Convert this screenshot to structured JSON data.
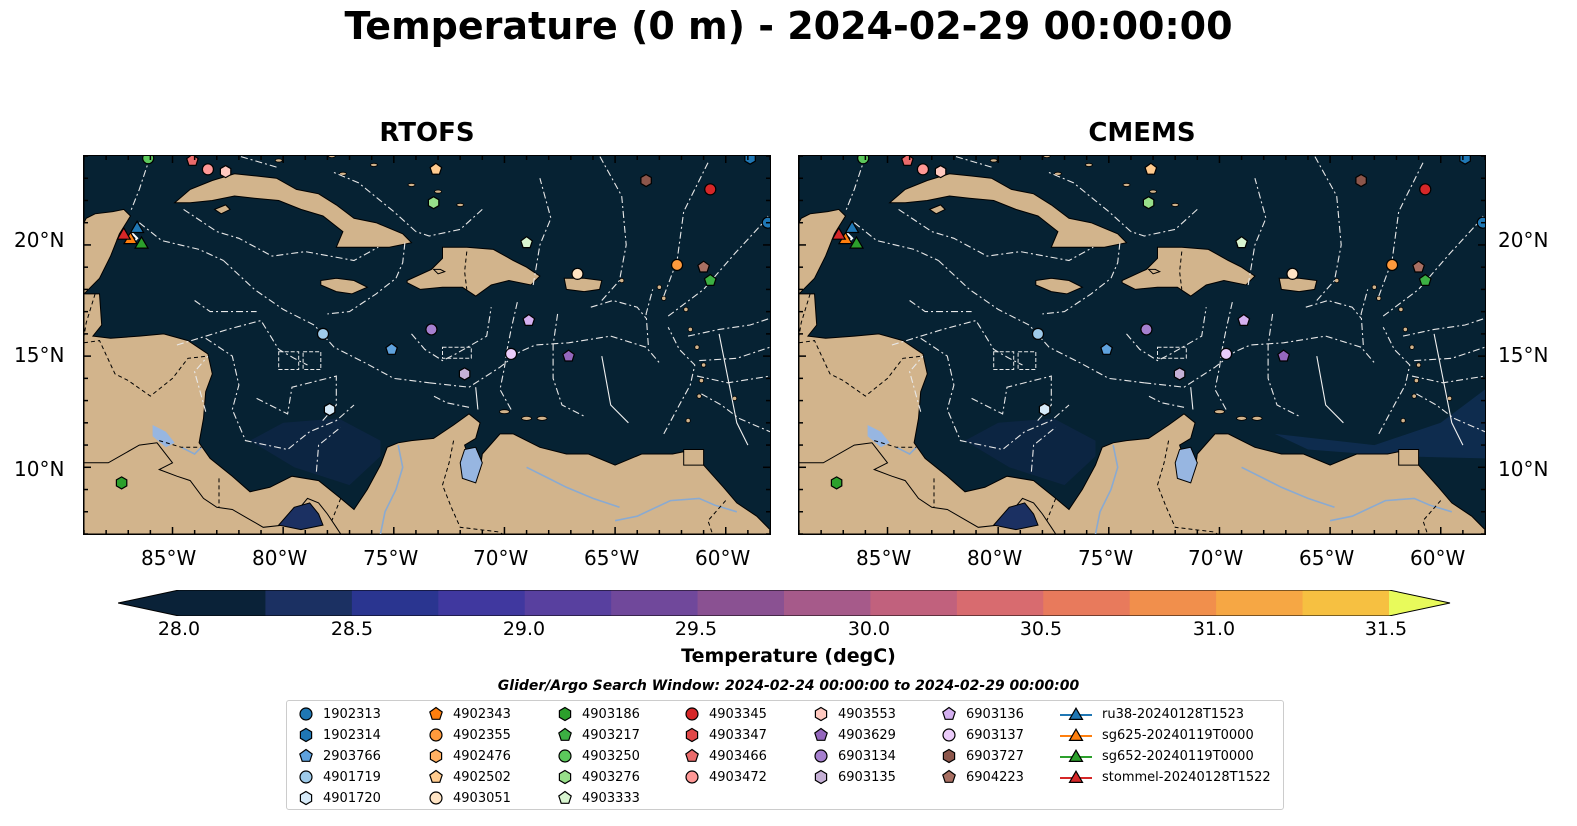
{
  "figure": {
    "title": "Temperature (0 m) - 2024-02-29 00:00:00",
    "panels": [
      "RTOFS",
      "CMEMS"
    ],
    "lat_ticks": [
      "20°N",
      "15°N",
      "10°N"
    ],
    "lon_ticks": [
      "85°W",
      "80°W",
      "75°W",
      "70°W",
      "65°W",
      "60°W"
    ]
  },
  "colorbar": {
    "label": "Temperature (degC)",
    "tick_labels": [
      "28.0",
      "28.5",
      "29.0",
      "29.5",
      "30.0",
      "30.5",
      "31.0",
      "31.5"
    ],
    "range": [
      28.0,
      31.5
    ],
    "step": 0.25,
    "colors": [
      "#0a2238",
      "#1b3062",
      "#2a3590",
      "#40389f",
      "#58409f",
      "#70489b",
      "#8a5192",
      "#a65a8a",
      "#c1617d",
      "#d86b6f",
      "#e87a5c",
      "#f18f4c",
      "#f6a744",
      "#f6c041",
      "#f1dc47",
      "#e8fa5b"
    ],
    "cmap": "thermal"
  },
  "legend": {
    "search_window": "Glider/Argo Search Window: 2024-02-24 00:00:00 to 2024-02-29 00:00:00",
    "columns": [
      [
        {
          "label": "1902313",
          "marker": "circle",
          "color": "#1f77b4"
        },
        {
          "label": "1902314",
          "marker": "hexagon",
          "color": "#1f77b4"
        },
        {
          "label": "2903766",
          "marker": "pentagon",
          "color": "#5fa2dd"
        },
        {
          "label": "4901719",
          "marker": "circle",
          "color": "#9ecae9"
        },
        {
          "label": "4901720",
          "marker": "hexagon",
          "color": "#d6eaf8"
        }
      ],
      [
        {
          "label": "4902343",
          "marker": "pentagon",
          "color": "#ff7f0e"
        },
        {
          "label": "4902355",
          "marker": "circle",
          "color": "#ff9a3c"
        },
        {
          "label": "4902476",
          "marker": "hexagon",
          "color": "#ffb062"
        },
        {
          "label": "4902502",
          "marker": "pentagon",
          "color": "#ffcb8f"
        },
        {
          "label": "4903051",
          "marker": "circle",
          "color": "#ffe4c4"
        }
      ],
      [
        {
          "label": "4903186",
          "marker": "hexagon",
          "color": "#2ca02c"
        },
        {
          "label": "4903217",
          "marker": "pentagon",
          "color": "#3cb043"
        },
        {
          "label": "4903250",
          "marker": "circle",
          "color": "#5cc85c"
        },
        {
          "label": "4903276",
          "marker": "hexagon",
          "color": "#98df8a"
        },
        {
          "label": "4903333",
          "marker": "pentagon",
          "color": "#d8f5d0"
        }
      ],
      [
        {
          "label": "4903345",
          "marker": "circle",
          "color": "#d62728"
        },
        {
          "label": "4903347",
          "marker": "hexagon",
          "color": "#e04848"
        },
        {
          "label": "4903466",
          "marker": "pentagon",
          "color": "#ea6b6b"
        },
        {
          "label": "4903472",
          "marker": "circle",
          "color": "#ff9896"
        }
      ],
      [
        {
          "label": "4903553",
          "marker": "hexagon",
          "color": "#ffc9c0"
        },
        {
          "label": "4903629",
          "marker": "pentagon",
          "color": "#9467bd"
        },
        {
          "label": "6903134",
          "marker": "circle",
          "color": "#a680cf"
        },
        {
          "label": "6903135",
          "marker": "hexagon",
          "color": "#c5b0d5"
        }
      ],
      [
        {
          "label": "6903136",
          "marker": "pentagon",
          "color": "#d4b0f0"
        },
        {
          "label": "6903137",
          "marker": "circle",
          "color": "#ebccfa"
        },
        {
          "label": "6903727",
          "marker": "hexagon",
          "color": "#8c564b"
        },
        {
          "label": "6904223",
          "marker": "pentagon",
          "color": "#a86f62"
        }
      ],
      [
        {
          "label": "ru38-20240128T1523",
          "marker": "triangle",
          "color": "#1f77b4"
        },
        {
          "label": "sg625-20240119T0000",
          "marker": "triangle",
          "color": "#ff7f0e"
        },
        {
          "label": "sg652-20240119T0000",
          "marker": "triangle",
          "color": "#2ca02c"
        },
        {
          "label": "stommel-20240128T1522",
          "marker": "triangle",
          "color": "#d62728"
        }
      ]
    ]
  },
  "map_data": {
    "extent_lon": [
      -89,
      -58
    ],
    "extent_lat": [
      7,
      24
    ],
    "ocean_color": "#062233",
    "land_color": "#d2b48c",
    "lake_color": "#97b6e1",
    "argo_floats": [
      {
        "label": "4903250",
        "lon": -86.1,
        "lat": 23.9,
        "marker": "circle",
        "color": "#5cc85c"
      },
      {
        "label": "4903466",
        "lon": -84.1,
        "lat": 23.8,
        "marker": "pentagon",
        "color": "#ea6b6b"
      },
      {
        "label": "4903472",
        "lon": -83.4,
        "lat": 23.4,
        "marker": "circle",
        "color": "#ff9896"
      },
      {
        "label": "4903553",
        "lon": -82.6,
        "lat": 23.3,
        "marker": "hexagon",
        "color": "#ffc9c0"
      },
      {
        "label": "4902502",
        "lon": -73.1,
        "lat": 23.4,
        "marker": "pentagon",
        "color": "#ffcb8f"
      },
      {
        "label": "4903276",
        "lon": -73.2,
        "lat": 21.9,
        "marker": "hexagon",
        "color": "#98df8a"
      },
      {
        "label": "6903727",
        "lon": -63.6,
        "lat": 22.9,
        "marker": "hexagon",
        "color": "#8c564b"
      },
      {
        "label": "4903345",
        "lon": -60.7,
        "lat": 22.5,
        "marker": "circle",
        "color": "#d62728"
      },
      {
        "label": "1902314",
        "lon": -58.9,
        "lat": 23.9,
        "marker": "hexagon",
        "color": "#1f77b4"
      },
      {
        "label": "1902313",
        "lon": -58.1,
        "lat": 21.0,
        "marker": "circle",
        "color": "#1f77b4"
      },
      {
        "label": "4903333",
        "lon": -69.0,
        "lat": 20.1,
        "marker": "pentagon",
        "color": "#d8f5d0"
      },
      {
        "label": "4903051",
        "lon": -66.7,
        "lat": 18.7,
        "marker": "circle",
        "color": "#ffe4c4"
      },
      {
        "label": "4902355",
        "lon": -62.2,
        "lat": 19.1,
        "marker": "circle",
        "color": "#ff9a3c"
      },
      {
        "label": "6904223",
        "lon": -61.0,
        "lat": 19.0,
        "marker": "pentagon",
        "color": "#a86f62"
      },
      {
        "label": "4903217",
        "lon": -60.7,
        "lat": 18.4,
        "marker": "pentagon",
        "color": "#3cb043"
      },
      {
        "label": "4901719",
        "lon": -78.2,
        "lat": 16.0,
        "marker": "circle",
        "color": "#9ecae9"
      },
      {
        "label": "2903766",
        "lon": -75.1,
        "lat": 15.3,
        "marker": "pentagon",
        "color": "#5fa2dd"
      },
      {
        "label": "6903134",
        "lon": -73.3,
        "lat": 16.2,
        "marker": "circle",
        "color": "#a680cf"
      },
      {
        "label": "6903136",
        "lon": -68.9,
        "lat": 16.6,
        "marker": "pentagon",
        "color": "#d4b0f0"
      },
      {
        "label": "6903137",
        "lon": -69.7,
        "lat": 15.1,
        "marker": "circle",
        "color": "#ebccfa"
      },
      {
        "label": "4903629",
        "lon": -67.1,
        "lat": 15.0,
        "marker": "pentagon",
        "color": "#9467bd"
      },
      {
        "label": "6903135",
        "lon": -71.8,
        "lat": 14.2,
        "marker": "hexagon",
        "color": "#c5b0d5"
      },
      {
        "label": "4901720",
        "lon": -77.9,
        "lat": 12.6,
        "marker": "hexagon",
        "color": "#d6eaf8"
      },
      {
        "label": "4903186",
        "lon": -87.3,
        "lat": 9.3,
        "marker": "hexagon",
        "color": "#2ca02c"
      }
    ],
    "gliders": [
      {
        "label": "ru38-20240128T1523",
        "lon": -86.6,
        "lat": 20.8,
        "color": "#1f77b4"
      },
      {
        "label": "sg625-20240119T0000",
        "lon": -86.9,
        "lat": 20.3,
        "color": "#ff7f0e"
      },
      {
        "label": "sg652-20240119T0000",
        "lon": -86.4,
        "lat": 20.1,
        "color": "#2ca02c"
      },
      {
        "label": "stommel-20240128T1522",
        "lon": -87.2,
        "lat": 20.5,
        "color": "#d62728"
      }
    ]
  }
}
